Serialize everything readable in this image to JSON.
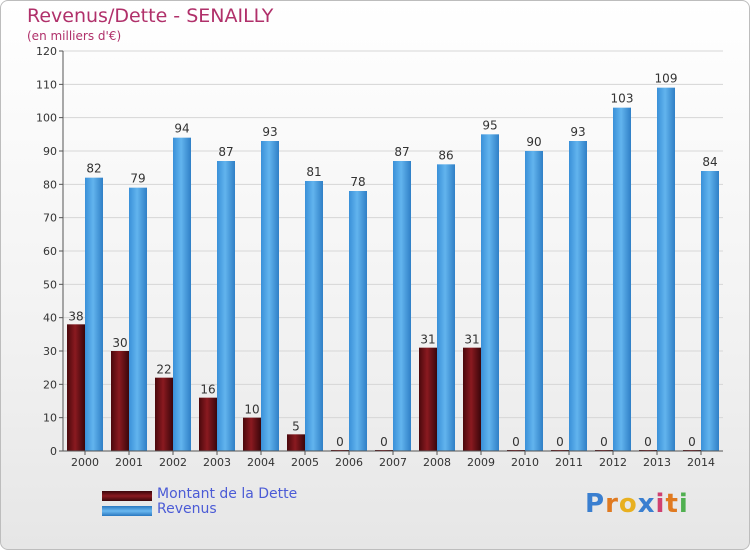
{
  "header": {
    "title": "Revenus/Dette - SENAILLY",
    "subtitle": "(en milliers d'€)"
  },
  "colors": {
    "debt": "#6b0f14",
    "revenue": "#4aa0e3",
    "title": "#b0306a",
    "legend_text": "#4b5bd6"
  },
  "chart_data": {
    "type": "bar",
    "title": "Revenus/Dette - SENAILLY",
    "subtitle": "(en milliers d'€)",
    "categories": [
      "2000",
      "2001",
      "2002",
      "2003",
      "2004",
      "2005",
      "2006",
      "2007",
      "2008",
      "2009",
      "2010",
      "2011",
      "2012",
      "2013",
      "2014"
    ],
    "series": [
      {
        "name": "Montant de la Dette",
        "values": [
          38,
          30,
          22,
          16,
          10,
          5,
          0,
          0,
          31,
          31,
          0,
          0,
          0,
          0,
          0
        ]
      },
      {
        "name": "Revenus",
        "values": [
          82,
          79,
          94,
          87,
          93,
          81,
          78,
          87,
          86,
          95,
          90,
          93,
          103,
          109,
          84
        ]
      }
    ],
    "yticks": [
      0,
      10,
      20,
      30,
      40,
      50,
      60,
      70,
      80,
      90,
      100,
      110,
      120
    ],
    "ylim": [
      0,
      120
    ],
    "grid": true,
    "legend_position": "bottom-left"
  },
  "legend": {
    "items": [
      {
        "label": "Montant de la Dette"
      },
      {
        "label": "Revenus"
      }
    ]
  },
  "brand": {
    "letters": [
      "P",
      "r",
      "o",
      "x",
      "i",
      "t",
      "i"
    ],
    "colors": [
      "#3a7fd0",
      "#e07a20",
      "#e8b020",
      "#3a7fd0",
      "#d04070",
      "#e07a20",
      "#50b050"
    ]
  }
}
